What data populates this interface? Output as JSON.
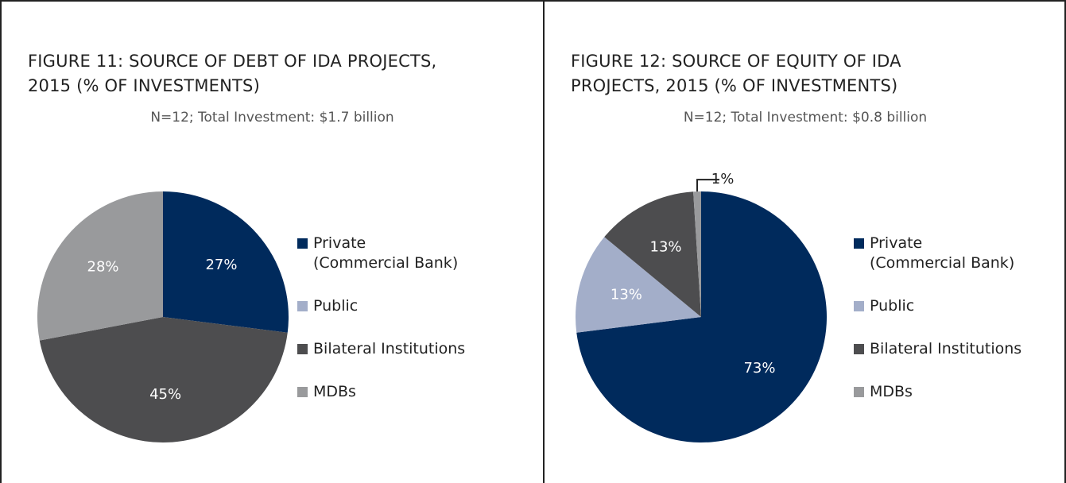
{
  "chart_data": [
    {
      "type": "pie",
      "title": "FIGURE 11: SOURCE OF DEBT OF IDA PROJECTS,\n2015 (% OF INVESTMENTS)",
      "subtitle": "N=12; Total Investment: $1.7 billion",
      "categories": [
        "Private\n(Commercial Bank)",
        "Public",
        "Bilateral Institutions",
        "MDBs"
      ],
      "values": [
        27,
        0,
        45,
        28
      ],
      "value_labels": [
        "27%",
        null,
        "45%",
        "28%"
      ],
      "colors": [
        "#002a5c",
        "#a3aec9",
        "#4d4d4f",
        "#999a9c"
      ]
    },
    {
      "type": "pie",
      "title": "FIGURE 12: SOURCE OF EQUITY OF IDA\nPROJECTS, 2015 (% OF INVESTMENTS)",
      "subtitle": "N=12; Total Investment: $0.8 billion",
      "categories": [
        "Private\n(Commercial Bank)",
        "Public",
        "Bilateral Institutions",
        "MDBs"
      ],
      "values": [
        73,
        13,
        13,
        1
      ],
      "value_labels": [
        "73%",
        "13%",
        "13%",
        "1%"
      ],
      "colors": [
        "#002a5c",
        "#a3aec9",
        "#4d4d4f",
        "#999a9c"
      ]
    }
  ]
}
